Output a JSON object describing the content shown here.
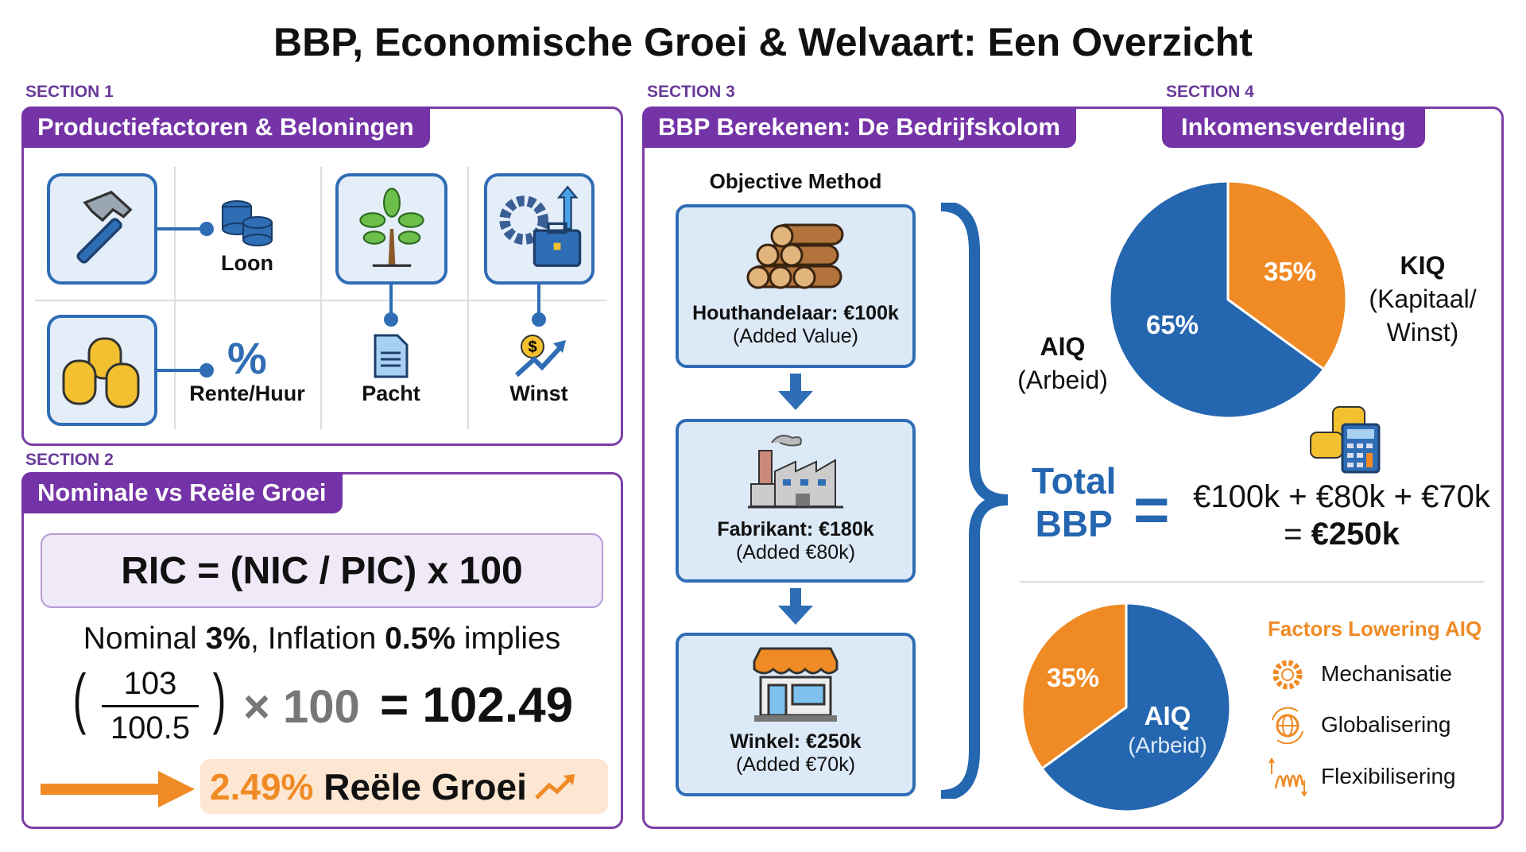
{
  "title": "BBP, Economische Groei & Welvaart: Een Overzicht",
  "colors": {
    "purple": "#7433a6",
    "blue": "#2566b0",
    "orange": "#f08a24"
  },
  "section1": {
    "label": "SECTION 1",
    "header": "Productiefactoren & Beloningen",
    "factors": [
      {
        "icon": "hammer-icon",
        "reward_icon": "blue-coins-icon",
        "reward": "Loon"
      },
      {
        "icon": "gold-coins-icon",
        "reward_icon": "percent-icon",
        "reward": "Rente/Huur"
      },
      {
        "icon": "tree-icon",
        "reward_icon": "document-icon",
        "reward": "Pacht"
      },
      {
        "icon": "gear-briefcase-icon",
        "reward_icon": "dollar-growth-icon",
        "reward": "Winst"
      }
    ]
  },
  "section2": {
    "label": "SECTION 2",
    "header": "Nominale vs Reële Groei",
    "formula": "RIC = (NIC / PIC) x 100",
    "example": {
      "p1": "Nominal ",
      "b1": "3%",
      "p2": ", Inflation ",
      "b2": "0.5%",
      "p3": " implies"
    },
    "numerator": "103",
    "denominator": "100.5",
    "times": "× 100",
    "equals": "= 102.49",
    "result_pct": "2.49%",
    "result_label": "Reële Groei"
  },
  "section3": {
    "label": "SECTION 3",
    "header": "BBP Berekenen: De Bedrijfskolom",
    "method": "Objective Method",
    "steps": [
      {
        "icon": "logs-icon",
        "name": "Houthandelaar: €100k",
        "sub": "(Added Value)"
      },
      {
        "icon": "factory-icon",
        "name": "Fabrikant: €180k",
        "sub": "(Added €80k)"
      },
      {
        "icon": "shop-icon",
        "name": "Winkel: €250k",
        "sub": "(Added €70k)"
      }
    ],
    "total_line1": "Total",
    "total_line2": "BBP",
    "equals": "=",
    "sum": "€100k + €80k + €70k",
    "sum_result_prefix": "= ",
    "sum_result": "€250k"
  },
  "section4": {
    "label": "SECTION 4",
    "header": "Inkomensverdeling",
    "pie1": {
      "slices": [
        {
          "name": "KIQ",
          "value": 35,
          "label": "35%",
          "color": "#f08a24"
        },
        {
          "name": "AIQ",
          "value": 65,
          "label": "65%",
          "color": "#2566b0"
        }
      ],
      "aiq_title": "AIQ",
      "aiq_sub": "(Arbeid)",
      "kiq_title": "KIQ",
      "kiq_sub1": "(Kapitaal/",
      "kiq_sub2": "Winst)"
    },
    "pie2": {
      "slices": [
        {
          "name": "other",
          "value": 35,
          "label": "35%",
          "color": "#f08a24"
        },
        {
          "name": "AIQ",
          "value": 65,
          "color": "#2566b0"
        }
      ],
      "aiq_title": "AIQ",
      "aiq_sub": "(Arbeid)"
    },
    "factors_title": "Factors Lowering AIQ",
    "factors": [
      {
        "icon": "gear-icon",
        "label": "Mechanisatie"
      },
      {
        "icon": "globe-icon",
        "label": "Globalisering"
      },
      {
        "icon": "spring-icon",
        "label": "Flexibilisering"
      }
    ]
  }
}
